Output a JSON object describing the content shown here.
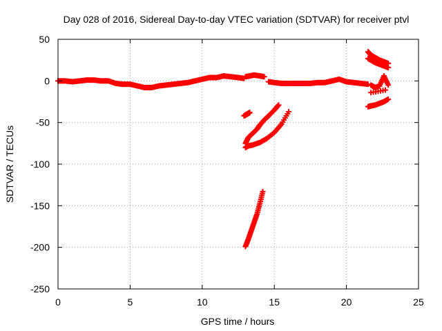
{
  "chart_data": {
    "type": "scatter",
    "title": "Day 028 of 2016, Sidereal Day-to-day VTEC variation (SDTVAR) for receiver ptvl",
    "xlabel": "GPS time / hours",
    "ylabel": "SDTVAR / TECUs",
    "xlim": [
      0,
      25
    ],
    "ylim": [
      -250,
      50
    ],
    "xticks": [
      0,
      5,
      10,
      15,
      20,
      25
    ],
    "yticks": [
      50,
      0,
      -50,
      -100,
      -150,
      -200,
      -250
    ],
    "grid": true,
    "marker": "plus",
    "color": "#ff0000",
    "series": [
      {
        "x": [
          0.0,
          0.5,
          1.0,
          1.5,
          2.0,
          2.5,
          3.0,
          3.5,
          4.0,
          4.5,
          5.0,
          5.5,
          6.0,
          6.5,
          7.0,
          7.5,
          8.0,
          8.5,
          9.0,
          9.5,
          10.0,
          10.5,
          11.0,
          11.5,
          12.0,
          12.5,
          12.9
        ],
        "y": [
          0,
          0,
          -1,
          0,
          1,
          1,
          0,
          0,
          -3,
          -4,
          -4,
          -6,
          -8,
          -8,
          -6,
          -5,
          -4,
          -3,
          -2,
          0,
          2,
          4,
          4,
          6,
          5,
          4,
          3
        ]
      },
      {
        "x": [
          13.0,
          13.3,
          13.6,
          14.0,
          14.3
        ],
        "y": [
          5,
          6,
          7,
          6,
          5
        ]
      },
      {
        "x": [
          14.6,
          15.0,
          15.5,
          16.0,
          16.5,
          17.0,
          17.5,
          18.0,
          18.5,
          19.0,
          19.5,
          20.0,
          20.5,
          21.0,
          21.5
        ],
        "y": [
          -1,
          -2,
          -3,
          -3,
          -3,
          -3,
          -3,
          -2,
          -2,
          0,
          2,
          -1,
          -2,
          -3,
          -4
        ]
      },
      {
        "x": [
          12.9,
          13.0,
          13.1,
          13.2,
          13.3
        ],
        "y": [
          -42,
          -41,
          -40,
          -39,
          -38
        ]
      },
      {
        "x": [
          13.0,
          13.2,
          13.5,
          14.0,
          14.5,
          15.0,
          15.5,
          16.0
        ],
        "y": [
          -80,
          -78,
          -77,
          -74,
          -69,
          -62,
          -52,
          -37
        ]
      },
      {
        "x": [
          13.0,
          13.2,
          13.5,
          13.8,
          14.0,
          14.3,
          14.6,
          15.0,
          15.3
        ],
        "y": [
          -75,
          -68,
          -63,
          -58,
          -53,
          -47,
          -42,
          -35,
          -29
        ]
      },
      {
        "x": [
          13.0,
          13.2,
          13.4,
          13.6,
          13.8,
          14.0,
          14.2
        ],
        "y": [
          -199,
          -190,
          -180,
          -170,
          -160,
          -147,
          -133
        ]
      },
      {
        "x": [
          21.5,
          21.7,
          22.0,
          22.3,
          22.6,
          22.9
        ],
        "y": [
          35,
          31,
          28,
          25,
          23,
          21
        ]
      },
      {
        "x": [
          21.5,
          21.7,
          22.0,
          22.3,
          22.6,
          22.9
        ],
        "y": [
          27,
          25,
          22,
          20,
          18,
          16
        ]
      },
      {
        "x": [
          21.7,
          22.0,
          22.3,
          22.6,
          22.9
        ],
        "y": [
          -5,
          -8,
          -6,
          6,
          -5
        ]
      },
      {
        "x": [
          21.5,
          21.7,
          22.0,
          22.3,
          22.6,
          22.9
        ],
        "y": [
          -31,
          -30,
          -29,
          -27,
          -25,
          -22
        ]
      },
      {
        "x": [
          21.7,
          22.7
        ],
        "y": [
          -14,
          -11
        ]
      }
    ]
  }
}
